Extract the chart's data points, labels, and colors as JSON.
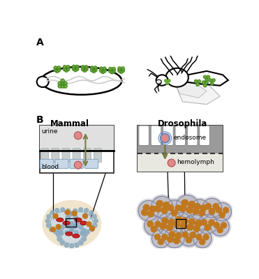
{
  "bg_color": "#ffffff",
  "label_A": "A",
  "label_B": "B",
  "mammal_title": "Mammal",
  "drosophila_title": "Drosophila",
  "urine_label": "urine",
  "blood_label": "blood",
  "endosome_label": "endosome",
  "hemolymph_label": "hemolymph",
  "green_color": "#6aaa3a",
  "dark_green": "#3a7a1a",
  "arrow_color": "#7a7a40",
  "blue_light": "#c8d8e8",
  "blue_mid": "#8aaac0",
  "red_cell": "#cc2222",
  "brown_dot": "#c07820",
  "pink_cell": "#e08888",
  "cream_bg": "#f0e4cc",
  "border_color": "#333333",
  "nephrocyte_gray": "#c0c0c8",
  "nephrocyte_outer": "#d8d8e0",
  "slit_gray": "#b0b8b8",
  "membrane_color": "#888888",
  "dark_bg": "#a0a0a0",
  "white": "#ffffff"
}
